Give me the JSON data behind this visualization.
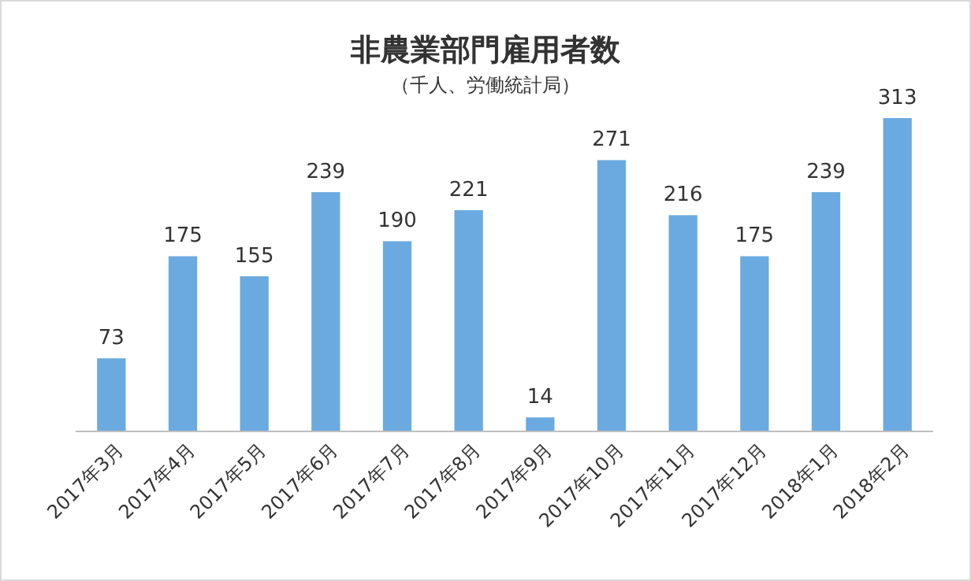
{
  "chart_data": {
    "type": "bar",
    "title": "非農業部門雇用者数",
    "subtitle": "（千人、労働統計局）",
    "categories": [
      "2017年3月",
      "2017年4月",
      "2017年5月",
      "2017年6月",
      "2017年7月",
      "2017年8月",
      "2017年9月",
      "2017年10月",
      "2017年11月",
      "2017年12月",
      "2018年1月",
      "2018年2月"
    ],
    "values": [
      73,
      175,
      155,
      239,
      190,
      221,
      14,
      271,
      216,
      175,
      239,
      313
    ],
    "color": "#6aaae0",
    "data_labels": true
  }
}
